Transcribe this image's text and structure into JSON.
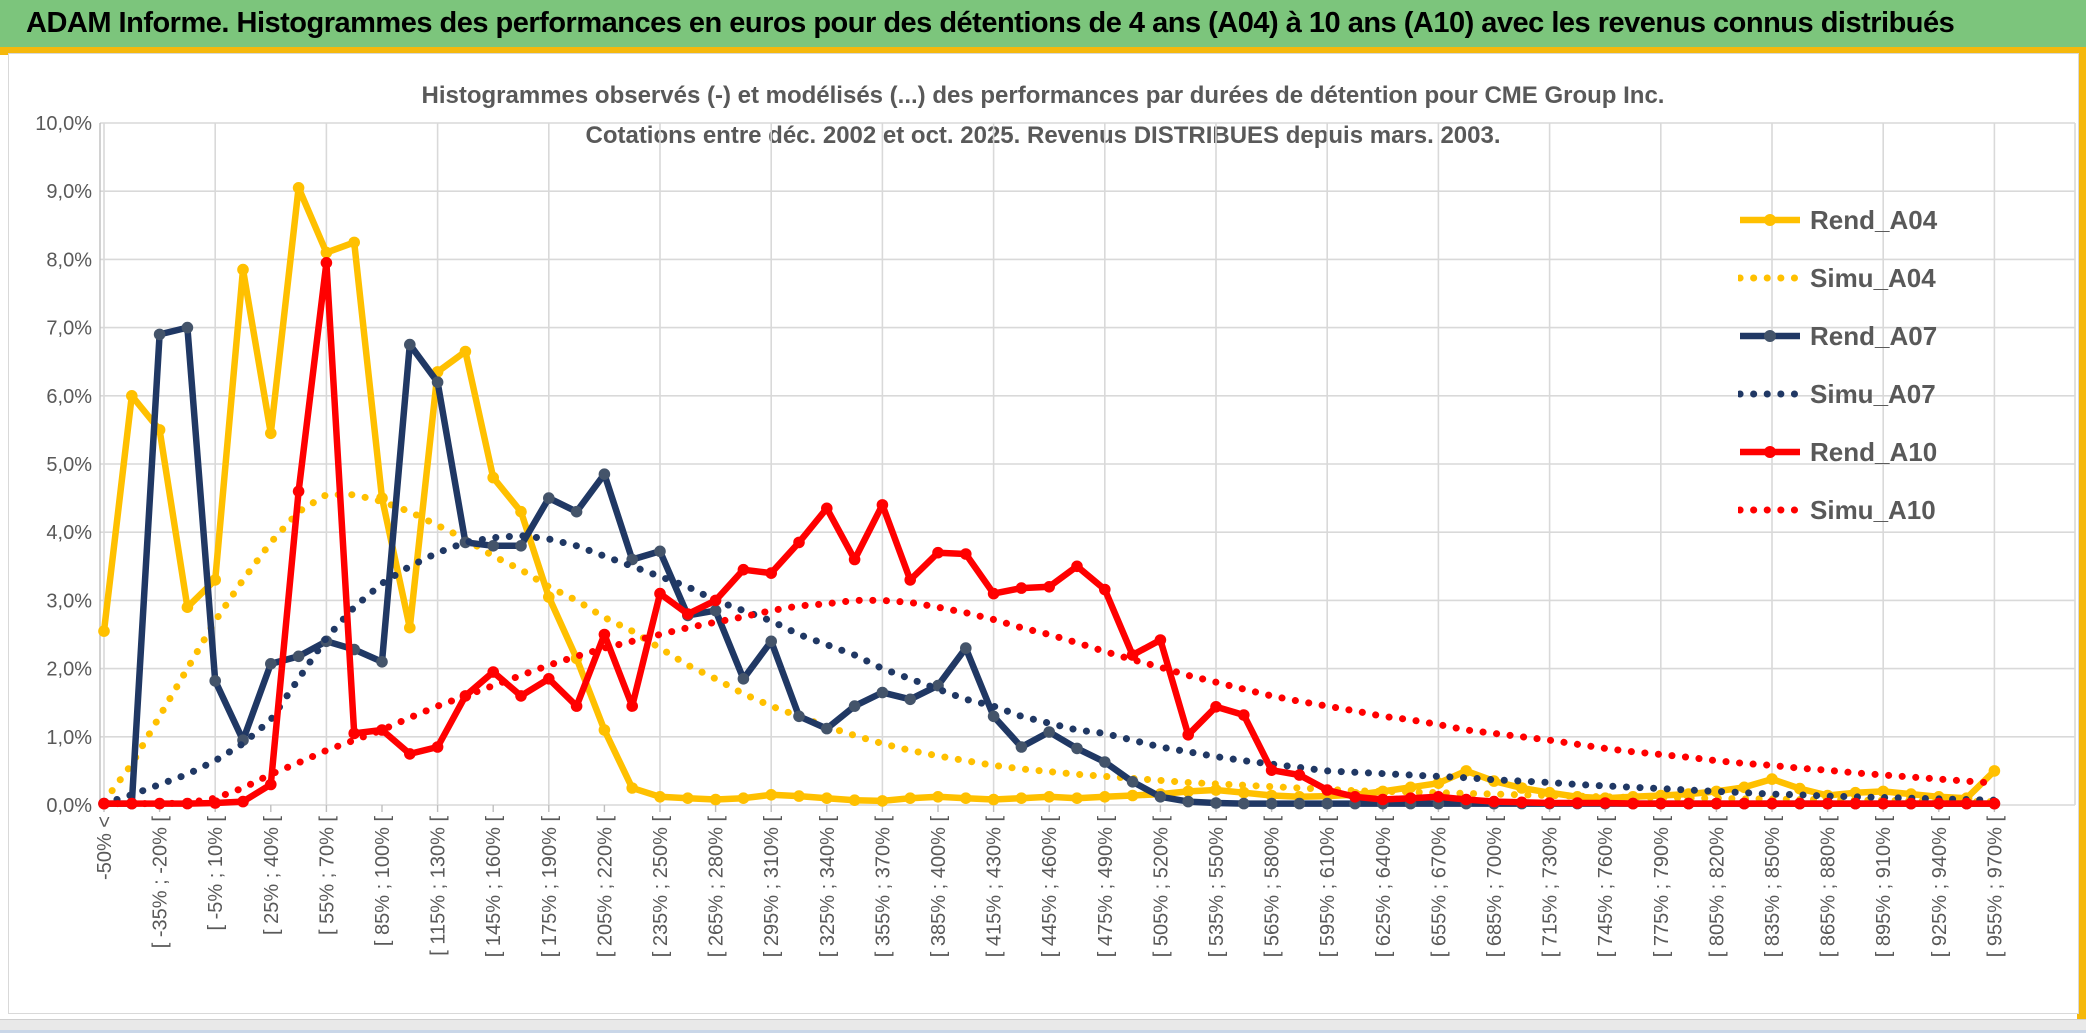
{
  "banner": {
    "title": "ADAM Informe. Histogrammes des performances en euros pour des détentions de 4 ans (A04) à 10 ans (A10) avec les revenus connus distribués"
  },
  "chart": {
    "title_line1": "Histogrammes observés (-) et modélisés (...) des performances par durées de détention pour CME Group Inc.",
    "title_line2": "Cotations entre déc. 2002 et oct. 2025. Revenus DISTRIBUES depuis mars. 2003."
  },
  "chart_data": {
    "type": "line",
    "n_bins": 69,
    "label_every_n_bins": 2,
    "grid": true,
    "legend_position": "right",
    "ylim": [
      0,
      10
    ],
    "y_tick_labels": [
      "0,0%",
      "1,0%",
      "2,0%",
      "3,0%",
      "4,0%",
      "5,0%",
      "6,0%",
      "7,0%",
      "8,0%",
      "9,0%",
      "10,0%"
    ],
    "x_tick_labels": [
      "-50% <",
      "[ -35% ; -20% [",
      "[ -5% ; 10% [",
      "[ 25% ; 40% [",
      "[ 55% ; 70% [",
      "[ 85% ; 100% [",
      "[ 115% ; 130% [",
      "[ 145% ; 160% [",
      "[ 175% ; 190% [",
      "[ 205% ; 220% [",
      "[ 235% ; 250% [",
      "[ 265% ; 280% [",
      "[ 295% ; 310% [",
      "[ 325% ; 340% [",
      "[ 355% ; 370% [",
      "[ 385% ; 400% [",
      "[ 415% ; 430% [",
      "[ 445% ; 460% [",
      "[ 475% ; 490% [",
      "[ 505% ; 520% [",
      "[ 535% ; 550% [",
      "[ 565% ; 580% [",
      "[ 595% ; 610% [",
      "[ 625% ; 640% [",
      "[ 655% ; 670% [",
      "[ 685% ; 700% [",
      "[ 715% ; 730% [",
      "[ 745% ; 760% [",
      "[ 775% ; 790% [",
      "[ 805% ; 820% [",
      "[ 835% ; 850% [",
      "[ 865% ; 880% [",
      "[ 895% ; 910% [",
      "[ 925% ; 940% [",
      "[ 955% ; 970% ["
    ],
    "colors": {
      "gold": "#FFC000",
      "navy": "#203864",
      "navy_marker": "#44546A",
      "red": "#FF0000",
      "grid": "#D9D9D9",
      "axis_text": "#595959"
    },
    "series": [
      {
        "name": "Rend_A04",
        "color": "#FFC000",
        "marker_color": "#FFC000",
        "style": "solid",
        "marker": true,
        "values": [
          2.55,
          6.0,
          5.5,
          2.9,
          3.3,
          7.85,
          5.45,
          9.05,
          8.1,
          8.25,
          4.5,
          2.6,
          6.35,
          6.65,
          4.8,
          4.3,
          3.05,
          2.15,
          1.1,
          0.25,
          0.12,
          0.1,
          0.08,
          0.1,
          0.15,
          0.13,
          0.1,
          0.07,
          0.06,
          0.1,
          0.12,
          0.1,
          0.08,
          0.1,
          0.12,
          0.1,
          0.12,
          0.14,
          0.16,
          0.2,
          0.22,
          0.18,
          0.14,
          0.12,
          0.13,
          0.15,
          0.2,
          0.26,
          0.32,
          0.5,
          0.35,
          0.25,
          0.18,
          0.12,
          0.1,
          0.12,
          0.14,
          0.16,
          0.2,
          0.26,
          0.38,
          0.24,
          0.14,
          0.18,
          0.2,
          0.16,
          0.12,
          0.1,
          0.5
        ]
      },
      {
        "name": "Simu_A04",
        "color": "#FFC000",
        "style": "dotted",
        "marker": false,
        "values": [
          0.05,
          0.6,
          1.3,
          2.0,
          2.7,
          3.3,
          3.85,
          4.3,
          4.55,
          4.55,
          4.45,
          4.3,
          4.1,
          3.9,
          3.65,
          3.45,
          3.2,
          3.0,
          2.75,
          2.55,
          2.3,
          2.05,
          1.85,
          1.63,
          1.45,
          1.3,
          1.15,
          1.02,
          0.9,
          0.8,
          0.72,
          0.65,
          0.58,
          0.53,
          0.49,
          0.45,
          0.42,
          0.39,
          0.36,
          0.33,
          0.31,
          0.29,
          0.27,
          0.25,
          0.23,
          0.21,
          0.2,
          0.19,
          0.18,
          0.17,
          0.16,
          0.15,
          0.14,
          0.13,
          0.12,
          0.11,
          0.11,
          0.1,
          0.1,
          0.09,
          0.09,
          0.08,
          0.08,
          0.07,
          0.07,
          0.06,
          0.06,
          0.05,
          0.05
        ]
      },
      {
        "name": "Rend_A07",
        "color": "#203864",
        "marker_color": "#44546A",
        "style": "solid",
        "marker": true,
        "values": [
          0.02,
          0.02,
          6.9,
          7.0,
          1.82,
          0.95,
          2.07,
          2.18,
          2.4,
          2.28,
          2.1,
          6.75,
          6.2,
          3.85,
          3.8,
          3.8,
          4.5,
          4.3,
          4.85,
          3.6,
          3.72,
          2.78,
          2.85,
          1.85,
          2.4,
          1.3,
          1.12,
          1.45,
          1.65,
          1.55,
          1.75,
          2.3,
          1.3,
          0.85,
          1.07,
          0.83,
          0.63,
          0.34,
          0.12,
          0.05,
          0.03,
          0.02,
          0.02,
          0.02,
          0.02,
          0.02,
          0.02,
          0.02,
          0.02,
          0.02,
          0.02,
          0.02,
          0.02,
          0.02,
          0.02,
          0.02,
          0.02,
          0.02,
          0.02,
          0.02,
          0.02,
          0.02,
          0.02,
          0.02,
          0.02,
          0.02,
          0.02,
          0.02,
          0.02
        ]
      },
      {
        "name": "Simu_A07",
        "color": "#203864",
        "style": "dotted",
        "marker": false,
        "values": [
          0.02,
          0.15,
          0.3,
          0.45,
          0.65,
          0.9,
          1.25,
          1.85,
          2.45,
          2.9,
          3.25,
          3.5,
          3.7,
          3.85,
          3.92,
          3.95,
          3.9,
          3.8,
          3.65,
          3.5,
          3.35,
          3.2,
          3.0,
          2.85,
          2.7,
          2.5,
          2.35,
          2.2,
          2.0,
          1.85,
          1.7,
          1.55,
          1.45,
          1.3,
          1.2,
          1.1,
          1.05,
          0.95,
          0.85,
          0.78,
          0.71,
          0.65,
          0.6,
          0.55,
          0.5,
          0.48,
          0.46,
          0.44,
          0.42,
          0.4,
          0.37,
          0.35,
          0.33,
          0.3,
          0.28,
          0.26,
          0.24,
          0.22,
          0.2,
          0.18,
          0.16,
          0.15,
          0.13,
          0.12,
          0.11,
          0.1,
          0.09,
          0.08,
          0.07
        ]
      },
      {
        "name": "Rend_A10",
        "color": "#FF0000",
        "marker_color": "#FF0000",
        "style": "solid",
        "marker": true,
        "values": [
          0.02,
          0.02,
          0.02,
          0.02,
          0.03,
          0.05,
          0.3,
          4.6,
          7.95,
          1.05,
          1.1,
          0.75,
          0.85,
          1.6,
          1.95,
          1.6,
          1.85,
          1.45,
          2.5,
          1.45,
          3.1,
          2.8,
          3.0,
          3.45,
          3.4,
          3.85,
          4.35,
          3.6,
          4.4,
          3.3,
          3.7,
          3.68,
          3.1,
          3.18,
          3.2,
          3.5,
          3.16,
          2.2,
          2.42,
          1.03,
          1.44,
          1.32,
          0.51,
          0.44,
          0.22,
          0.12,
          0.08,
          0.1,
          0.12,
          0.08,
          0.05,
          0.04,
          0.03,
          0.03,
          0.03,
          0.02,
          0.02,
          0.02,
          0.02,
          0.02,
          0.02,
          0.02,
          0.02,
          0.02,
          0.02,
          0.02,
          0.02,
          0.02,
          0.02
        ]
      },
      {
        "name": "Simu_A10",
        "color": "#FF0000",
        "style": "dotted",
        "marker": false,
        "values": [
          0.02,
          0.02,
          0.02,
          0.03,
          0.1,
          0.25,
          0.45,
          0.62,
          0.8,
          0.95,
          1.1,
          1.28,
          1.45,
          1.6,
          1.75,
          1.9,
          2.05,
          2.18,
          2.3,
          2.4,
          2.5,
          2.6,
          2.68,
          2.76,
          2.85,
          2.92,
          2.95,
          3.0,
          3.0,
          2.97,
          2.9,
          2.82,
          2.72,
          2.6,
          2.5,
          2.38,
          2.25,
          2.13,
          2.02,
          1.9,
          1.8,
          1.7,
          1.6,
          1.52,
          1.45,
          1.38,
          1.3,
          1.25,
          1.18,
          1.1,
          1.05,
          1.0,
          0.95,
          0.89,
          0.83,
          0.78,
          0.74,
          0.7,
          0.65,
          0.61,
          0.58,
          0.54,
          0.51,
          0.47,
          0.44,
          0.41,
          0.38,
          0.35,
          0.32
        ]
      }
    ]
  }
}
